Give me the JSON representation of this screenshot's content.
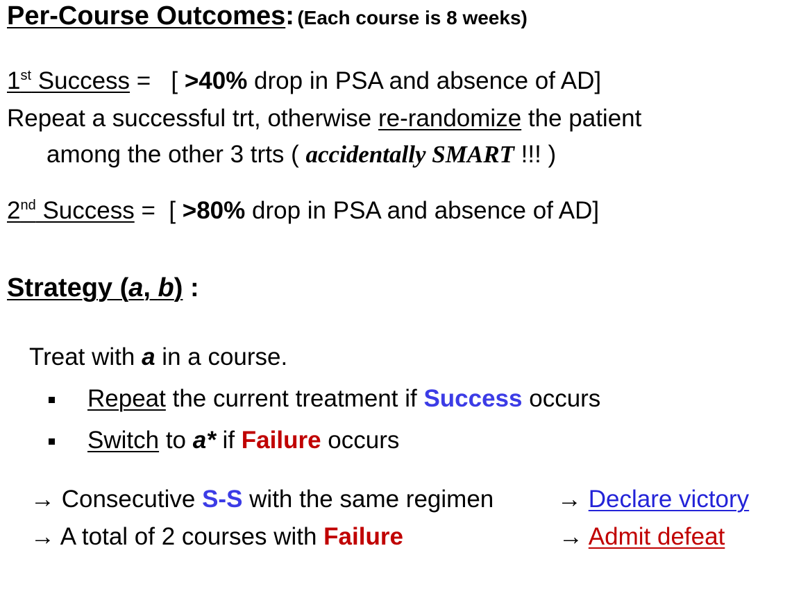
{
  "header": {
    "title": "Per-Course Outcomes",
    "colon": ":",
    "note": "(Each course is 8 weeks)"
  },
  "success1": {
    "num": "1",
    "sup": "st",
    "label": " Success",
    "eq": " =   [ ",
    "threshold": ">40%",
    "rest": " drop in PSA and absence of AD]"
  },
  "repeat_line": {
    "pre": "Repeat a successful trt, otherwise ",
    "link": "re-randomize",
    "post": " the patient"
  },
  "among_line": {
    "pre": "among the other 3 trts ( ",
    "emph": "accidentally SMART",
    "post": " !!! )"
  },
  "success2": {
    "num": "2",
    "sup": "nd",
    "label": " Success",
    "eq": " =  [ ",
    "threshold": ">80%",
    "rest": " drop in PSA and absence of AD]"
  },
  "strategy": {
    "word": "Strategy (",
    "a": "a",
    "comma": ", ",
    "b": "b",
    "close": ")",
    "tail": " :"
  },
  "treat": {
    "pre": "Treat with ",
    "a": "a",
    "post": " in a course."
  },
  "bullets": [
    {
      "verb": "Repeat",
      "mid": " the current treatment if ",
      "keyword": "Success",
      "post": " occurs"
    },
    {
      "verb": "Switch",
      "mid": " to ",
      "a_star": "a*",
      "mid2": " if ",
      "keyword": "Failure",
      "post": " occurs"
    }
  ],
  "rules": [
    {
      "arrow": "→",
      "pre": " Consecutive ",
      "keyword": "S-S",
      "post": " with the same regimen",
      "arrow2": "→",
      "outcome": "Declare victory"
    },
    {
      "arrow": "→",
      "pre": " A total of 2 courses with ",
      "keyword": "Failure",
      "post": "",
      "arrow2": "→",
      "outcome": "Admit defeat"
    }
  ],
  "colors": {
    "success": "#3c3ce6",
    "failure": "#c00000",
    "link_blue": "#2323d8"
  }
}
